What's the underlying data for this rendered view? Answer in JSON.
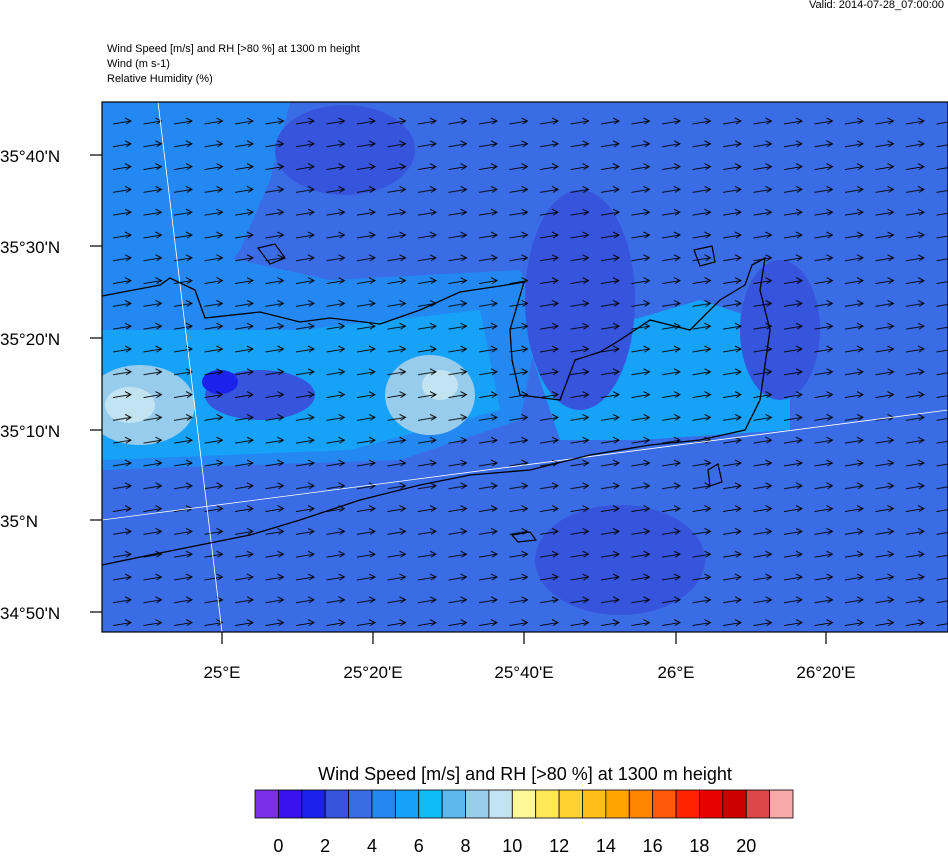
{
  "valid": "Valid: 2014-07-28_07:00:00",
  "titles": [
    "Wind Speed [m/s] and RH [>80 %] at 1300 m height",
    "Wind   (m s-1)",
    "Relative Humidity   (%)"
  ],
  "lat_labels": [
    "35°40'N",
    "35°30'N",
    "35°20'N",
    "35°10'N",
    "35°N",
    "34°50'N"
  ],
  "lon_labels": [
    "25°E",
    "25°20'E",
    "25°40'E",
    "26°E",
    "26°20'E"
  ],
  "colorbar": {
    "title": "Wind Speed [m/s] and RH [>80 %] at 1300 m height",
    "colors": [
      "#7a2ee6",
      "#3a12f0",
      "#1a22ec",
      "#3654dc",
      "#3a6ce6",
      "#2488f2",
      "#16a2f6",
      "#10bcf8",
      "#5cb8ee",
      "#98ccec",
      "#c2e4f2",
      "#fff898",
      "#ffe858",
      "#ffd232",
      "#ffbe1a",
      "#ffa400",
      "#ff8600",
      "#ff5a0c",
      "#ff2400",
      "#e80000",
      "#cc0000",
      "#dc4848"
    ],
    "extra_color": "#f8aaaa",
    "labels": [
      0,
      2,
      4,
      6,
      8,
      10,
      12,
      14,
      16,
      18,
      20
    ]
  }
}
